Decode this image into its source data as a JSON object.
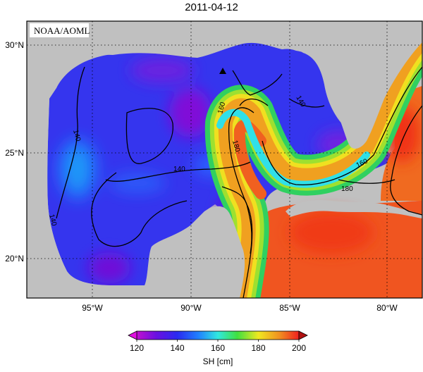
{
  "title": "2011-04-12",
  "source_label": "NOAA/AOML",
  "map": {
    "lat_ticks": [
      "30°N",
      "25°N",
      "20°N"
    ],
    "lon_ticks": [
      "95°W",
      "90°W",
      "85°W",
      "80°W"
    ],
    "lon_range": [
      -98.5,
      -77.8
    ],
    "lat_range": [
      18,
      31
    ],
    "contour_labels": [
      "140",
      "140",
      "140",
      "140",
      "160",
      "160",
      "180",
      "180"
    ],
    "marker": "triangle-marker",
    "grid": "dotted",
    "land_color": "#c0c0c0"
  },
  "colorbar": {
    "ticks": [
      "120",
      "140",
      "160",
      "180",
      "200"
    ],
    "label": "SH [cm]",
    "range": [
      120,
      200
    ]
  },
  "colors": {
    "purple": "#8a10d8",
    "blue": "#3030f0",
    "light_blue": "#2090ff",
    "cyan": "#30e0e8",
    "green": "#30e040",
    "yellow": "#f0e020",
    "orange": "#f09020",
    "red": "#f04020"
  }
}
